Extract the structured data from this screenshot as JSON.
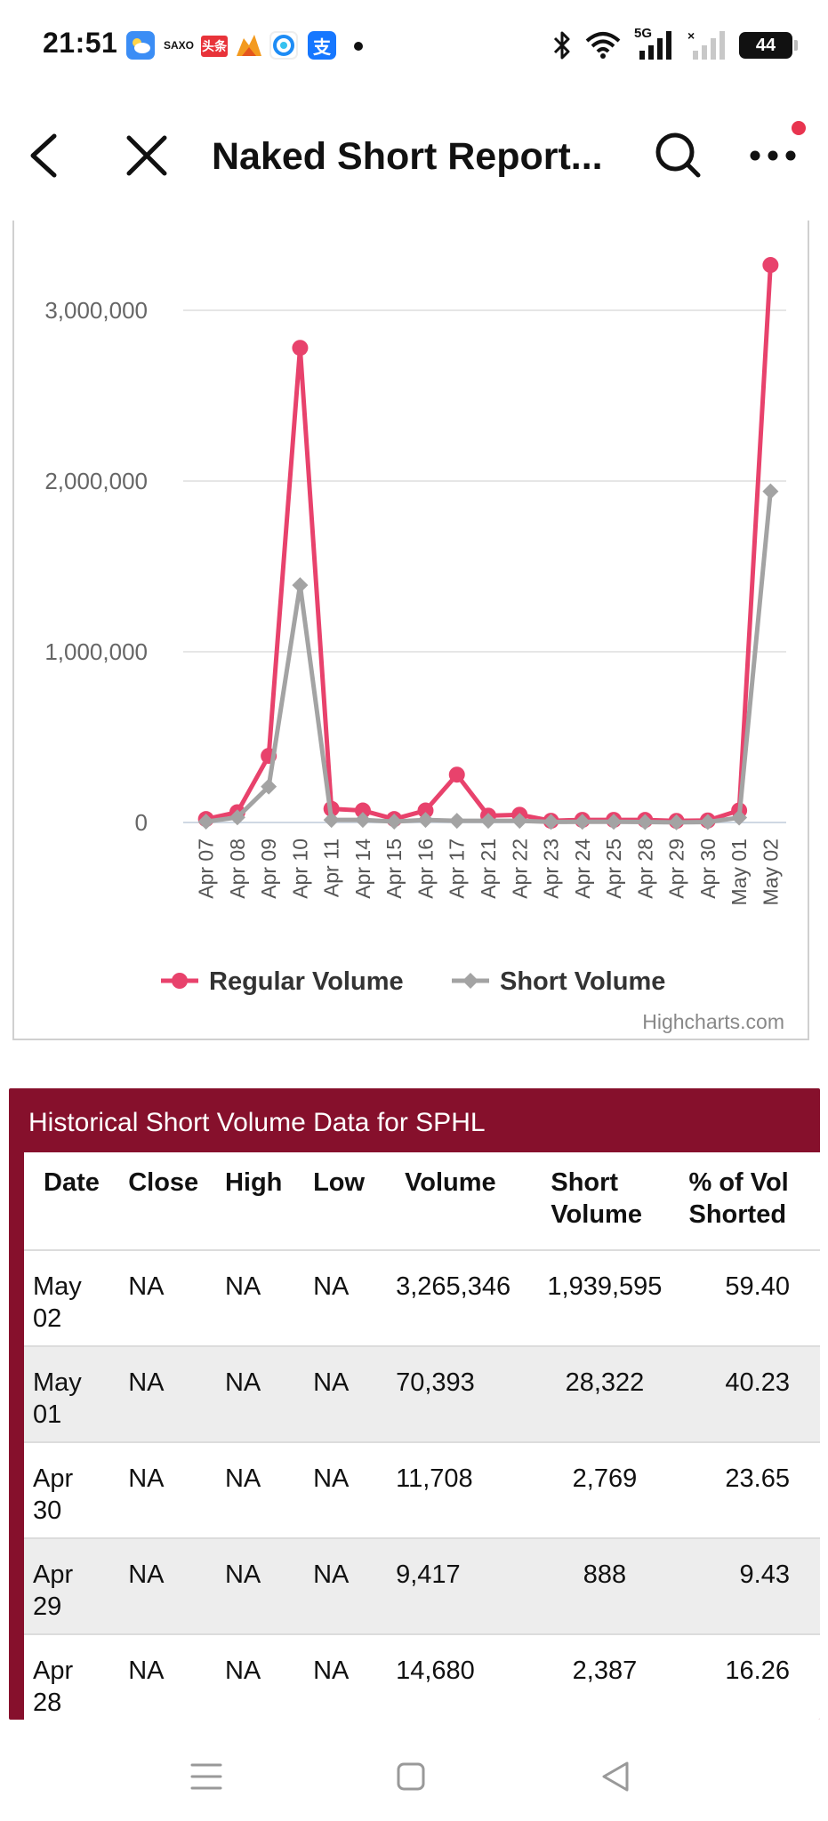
{
  "status_bar": {
    "time": "21:51",
    "notification_icons": [
      "weather-icon",
      "saxo-icon",
      "toutiao-icon",
      "fox-icon",
      "browser-icon",
      "alipay-icon"
    ],
    "saxo_label": "SAXO",
    "toutiao_label": "头条",
    "alipay_label": "支",
    "network_label": "5G",
    "battery_level": "44"
  },
  "header": {
    "title": "Naked Short Report..."
  },
  "chart_data": {
    "type": "line",
    "categories": [
      "Apr 07",
      "Apr 08",
      "Apr 09",
      "Apr 10",
      "Apr 11",
      "Apr 14",
      "Apr 15",
      "Apr 16",
      "Apr 17",
      "Apr 21",
      "Apr 22",
      "Apr 23",
      "Apr 24",
      "Apr 25",
      "Apr 28",
      "Apr 29",
      "Apr 30",
      "May 01",
      "May 02"
    ],
    "series": [
      {
        "name": "Regular Volume",
        "color": "#e8426c",
        "marker": "circle",
        "values": [
          20000,
          60000,
          390000,
          2780000,
          80000,
          70000,
          20000,
          70000,
          280000,
          40000,
          45000,
          10000,
          15000,
          15000,
          14680,
          9417,
          11708,
          70393,
          3265346
        ]
      },
      {
        "name": "Short Volume",
        "color": "#a3a3a3",
        "marker": "diamond",
        "values": [
          5000,
          30000,
          210000,
          1390000,
          15000,
          15000,
          5000,
          15000,
          10000,
          10000,
          10000,
          3000,
          4000,
          4000,
          2387,
          888,
          2769,
          28322,
          1939595
        ]
      }
    ],
    "y_ticks": [
      "0",
      "1,000,000",
      "2,000,000",
      "3,000,000"
    ],
    "ylim": [
      0,
      3400000
    ],
    "grid": true,
    "legend": "bottom-center",
    "credits": "Highcharts.com"
  },
  "table": {
    "title": "Historical Short Volume Data for SPHL",
    "headers": [
      "Date",
      "Close",
      "High",
      "Low",
      "Volume",
      "Short Volume",
      "% of Vol Shorted"
    ],
    "rows": [
      {
        "date": "May 02",
        "close": "NA",
        "high": "NA",
        "low": "NA",
        "volume": "3,265,346",
        "short_volume": "1,939,595",
        "pct": "59.40"
      },
      {
        "date": "May 01",
        "close": "NA",
        "high": "NA",
        "low": "NA",
        "volume": "70,393",
        "short_volume": "28,322",
        "pct": "40.23"
      },
      {
        "date": "Apr 30",
        "close": "NA",
        "high": "NA",
        "low": "NA",
        "volume": "11,708",
        "short_volume": "2,769",
        "pct": "23.65"
      },
      {
        "date": "Apr 29",
        "close": "NA",
        "high": "NA",
        "low": "NA",
        "volume": "9,417",
        "short_volume": "888",
        "pct": "9.43"
      },
      {
        "date": "Apr 28",
        "close": "NA",
        "high": "NA",
        "low": "NA",
        "volume": "14,680",
        "short_volume": "2,387",
        "pct": "16.26"
      }
    ]
  }
}
